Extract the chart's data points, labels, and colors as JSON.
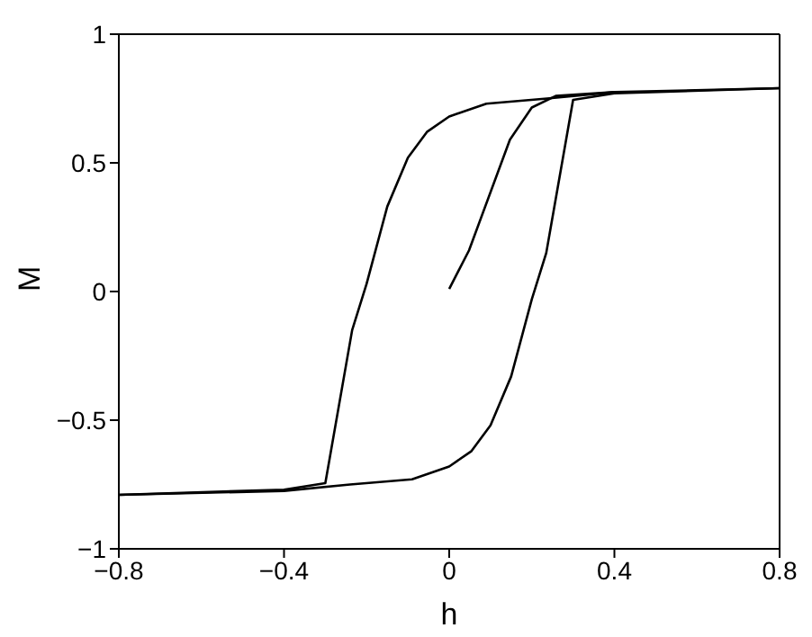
{
  "chart_data": {
    "type": "line",
    "xlabel": "h",
    "ylabel": "M",
    "xlim": [
      -0.8,
      0.8
    ],
    "xticks": [
      -0.8,
      -0.4,
      0,
      0.4,
      0.8
    ],
    "ylim": [
      -1,
      1
    ],
    "yticks": [
      -1,
      -0.5,
      0,
      0.5,
      1
    ],
    "grid": false,
    "legend": false,
    "marker": "none",
    "line_style": "solid",
    "series": [
      {
        "color": "#000000",
        "x": [
          0.8,
          0.4,
          0.237,
          0.09,
          0,
          -0.054,
          -0.1,
          -0.15,
          -0.2,
          -0.235,
          -0.3,
          -0.4,
          -0.8
        ],
        "values": [
          0.79,
          0.775,
          0.75,
          0.73,
          0.68,
          0.62,
          0.52,
          0.33,
          0.03,
          -0.15,
          -0.745,
          -0.77,
          -0.79
        ]
      },
      {
        "color": "#000000",
        "x": [
          -0.8,
          -0.4,
          -0.24,
          -0.09,
          0,
          0.054,
          0.1,
          0.15,
          0.2,
          0.235,
          0.3,
          0.4,
          0.8
        ],
        "values": [
          -0.79,
          -0.775,
          -0.75,
          -0.73,
          -0.68,
          -0.62,
          -0.52,
          -0.33,
          -0.03,
          0.15,
          0.745,
          0.77,
          0.79
        ]
      },
      {
        "color": "#000000",
        "x": [
          0,
          0.048,
          0.147,
          0.2,
          0.258,
          0.4
        ],
        "values": [
          0.01,
          0.16,
          0.59,
          0.715,
          0.76,
          0.775
        ]
      }
    ]
  }
}
